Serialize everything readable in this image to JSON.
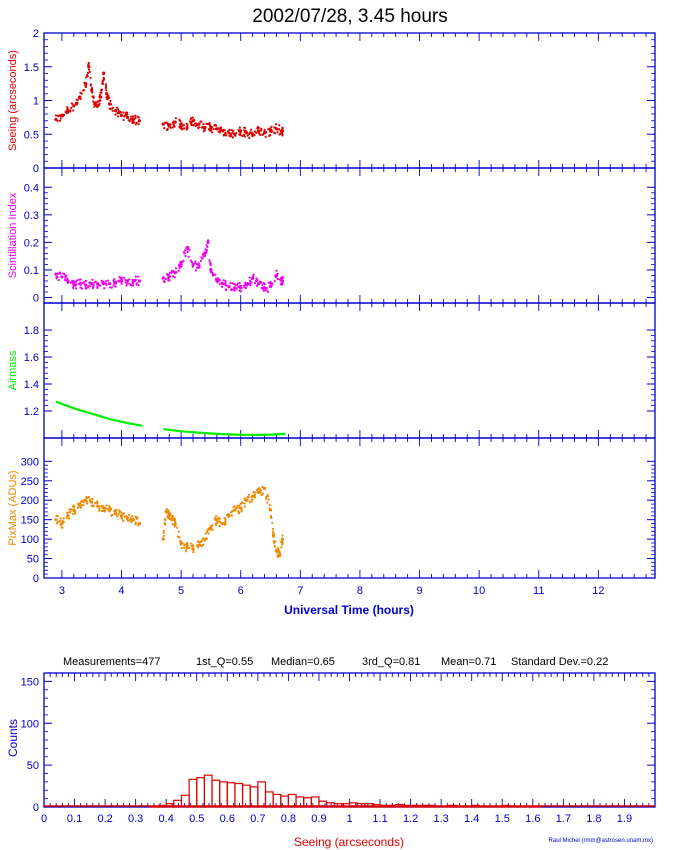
{
  "title": "2002/07/28, 3.45 hours",
  "time_axis": {
    "xlabel": "Universal Time (hours)",
    "xlim": [
      2.7,
      12.95
    ],
    "ticks": [
      "3",
      "4",
      "5",
      "6",
      "7",
      "8",
      "9",
      "10",
      "11",
      "12"
    ]
  },
  "histogram_stats": {
    "measurements": "Measurements=477",
    "q1": "1st_Q=0.55",
    "median": "Median=0.65",
    "q3": "3rd_Q=0.81",
    "mean": "Mean=0.71",
    "std": "Standard Dev.=0.22"
  },
  "credit": "Raul Michel (rmm@astrosen.unam.mx)",
  "colors": {
    "axis": "#0000cc",
    "seeing": "#dd0000",
    "scint": "#ee00ee",
    "airmass": "#00ee00",
    "pixmax": "#ee8800",
    "hist": "#dd0000",
    "label_blue": "#0000cc"
  },
  "chart_data": [
    {
      "type": "scatter",
      "ylabel": "Seeing (arcseconds)",
      "ylim": [
        0,
        2
      ],
      "yticks": [
        "0",
        "0.5",
        "1",
        "1.5",
        "2"
      ],
      "x": [
        2.9,
        3.0,
        3.1,
        3.2,
        3.3,
        3.4,
        3.45,
        3.5,
        3.55,
        3.6,
        3.65,
        3.7,
        3.75,
        3.8,
        3.9,
        4.0,
        4.1,
        4.2,
        4.3,
        4.7,
        4.8,
        4.9,
        5.0,
        5.1,
        5.2,
        5.3,
        5.4,
        5.5,
        5.6,
        5.7,
        5.8,
        5.9,
        6.0,
        6.1,
        6.2,
        6.3,
        6.4,
        6.5,
        6.6,
        6.7
      ],
      "y": [
        0.72,
        0.78,
        0.85,
        0.92,
        1.05,
        1.25,
        1.5,
        1.15,
        0.95,
        0.92,
        1.05,
        1.4,
        1.1,
        0.95,
        0.85,
        0.78,
        0.75,
        0.72,
        0.7,
        0.65,
        0.62,
        0.68,
        0.65,
        0.6,
        0.7,
        0.65,
        0.6,
        0.6,
        0.58,
        0.55,
        0.52,
        0.5,
        0.55,
        0.52,
        0.5,
        0.55,
        0.52,
        0.55,
        0.58,
        0.55
      ]
    },
    {
      "type": "scatter",
      "ylabel": "Scintillation Index",
      "ylim": [
        -0.02,
        0.47
      ],
      "yticks": [
        "0",
        "0.1",
        "0.2",
        "0.3",
        "0.4"
      ],
      "x": [
        2.9,
        3.0,
        3.1,
        3.2,
        3.3,
        3.4,
        3.5,
        3.6,
        3.7,
        3.8,
        3.9,
        4.0,
        4.1,
        4.2,
        4.3,
        4.7,
        4.8,
        4.9,
        5.0,
        5.1,
        5.2,
        5.3,
        5.4,
        5.45,
        5.5,
        5.6,
        5.7,
        5.8,
        5.9,
        6.0,
        6.1,
        6.2,
        6.3,
        6.4,
        6.5,
        6.6,
        6.7
      ],
      "y": [
        0.085,
        0.075,
        0.06,
        0.05,
        0.05,
        0.045,
        0.05,
        0.05,
        0.05,
        0.05,
        0.055,
        0.06,
        0.06,
        0.06,
        0.06,
        0.07,
        0.075,
        0.09,
        0.12,
        0.18,
        0.12,
        0.11,
        0.16,
        0.2,
        0.1,
        0.06,
        0.05,
        0.04,
        0.035,
        0.035,
        0.045,
        0.07,
        0.05,
        0.035,
        0.04,
        0.08,
        0.06
      ]
    },
    {
      "type": "line",
      "ylabel": "Airmass",
      "ylim": [
        1.0,
        2.0
      ],
      "yticks": [
        "1.2",
        "1.4",
        "1.6",
        "1.8"
      ],
      "segments": [
        {
          "x": [
            2.9,
            3.2,
            3.5,
            3.8,
            4.1,
            4.35
          ],
          "y": [
            1.27,
            1.22,
            1.18,
            1.14,
            1.11,
            1.09
          ]
        },
        {
          "x": [
            4.7,
            5.0,
            5.3,
            5.6,
            5.9,
            6.2,
            6.5,
            6.75
          ],
          "y": [
            1.065,
            1.05,
            1.04,
            1.03,
            1.025,
            1.022,
            1.025,
            1.03
          ]
        }
      ]
    },
    {
      "type": "scatter",
      "ylabel": "PixMax (ADUs)",
      "ylim": [
        0,
        360
      ],
      "yticks": [
        "0",
        "50",
        "100",
        "150",
        "200",
        "250",
        "300"
      ],
      "x": [
        2.9,
        3.0,
        3.1,
        3.2,
        3.3,
        3.4,
        3.5,
        3.6,
        3.7,
        3.8,
        3.9,
        4.0,
        4.1,
        4.2,
        4.3,
        4.7,
        4.75,
        4.8,
        4.85,
        4.9,
        5.0,
        5.1,
        5.2,
        5.3,
        5.4,
        5.5,
        5.6,
        5.7,
        5.8,
        5.9,
        6.0,
        6.1,
        6.2,
        6.3,
        6.4,
        6.5,
        6.55,
        6.6,
        6.65,
        6.7
      ],
      "y": [
        150,
        140,
        160,
        175,
        190,
        200,
        195,
        185,
        180,
        175,
        165,
        160,
        155,
        150,
        140,
        100,
        170,
        160,
        150,
        140,
        90,
        80,
        75,
        85,
        100,
        130,
        150,
        140,
        160,
        175,
        180,
        200,
        210,
        220,
        230,
        175,
        110,
        70,
        60,
        100
      ]
    },
    {
      "type": "bar",
      "xlabel": "Seeing (arcseconds)",
      "ylabel": "Counts",
      "xlim": [
        0,
        2
      ],
      "ylim": [
        0,
        160
      ],
      "yticks": [
        "0",
        "50",
        "100",
        "150"
      ],
      "xticks": [
        "0",
        "0.1",
        "0.2",
        "0.3",
        "0.4",
        "0.5",
        "0.6",
        "0.7",
        "0.8",
        "0.9",
        "1",
        "1.1",
        "1.2",
        "1.3",
        "1.4",
        "1.5",
        "1.6",
        "1.7",
        "1.8",
        "1.9"
      ],
      "bin_width": 0.025,
      "bin_starts": [
        0.35,
        0.375,
        0.4,
        0.425,
        0.45,
        0.475,
        0.5,
        0.525,
        0.55,
        0.575,
        0.6,
        0.625,
        0.65,
        0.675,
        0.7,
        0.725,
        0.75,
        0.775,
        0.8,
        0.825,
        0.85,
        0.875,
        0.9,
        0.925,
        0.95,
        0.975,
        1.0,
        1.025,
        1.05,
        1.075,
        1.1,
        1.125,
        1.15,
        1.175,
        1.2,
        1.225,
        1.25,
        1.275,
        1.3,
        1.325,
        1.35,
        1.375,
        1.4,
        1.425,
        1.45,
        1.475,
        1.5,
        1.525,
        1.55,
        1.575,
        1.6
      ],
      "counts": [
        1,
        2,
        4,
        8,
        14,
        33,
        35,
        38,
        32,
        30,
        29,
        28,
        26,
        24,
        30,
        18,
        15,
        13,
        15,
        12,
        11,
        12,
        7,
        5,
        4,
        4,
        5,
        4,
        4,
        3,
        2,
        2,
        3,
        2,
        2,
        2,
        2,
        1,
        1,
        2,
        1,
        1,
        2,
        1,
        1,
        1,
        2,
        1,
        1,
        1,
        1
      ]
    }
  ]
}
